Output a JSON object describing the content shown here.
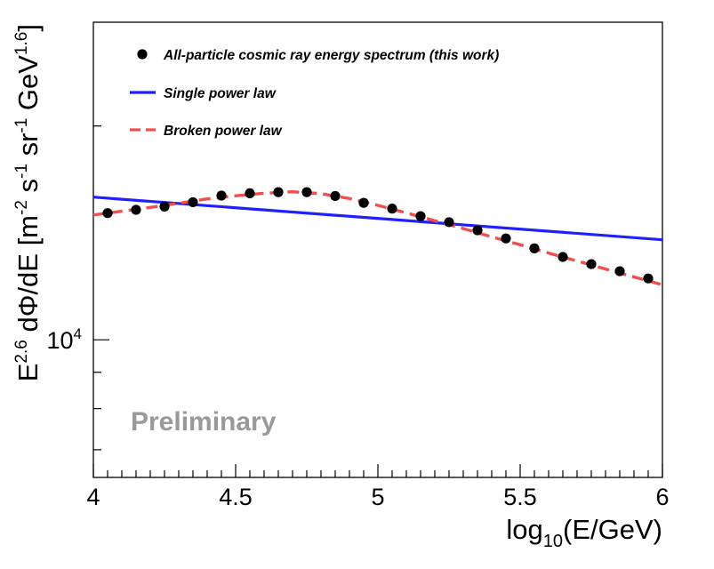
{
  "chart_data": {
    "type": "scatter",
    "title": "",
    "xlabel": {
      "base": "log",
      "sub": "10",
      "rest": "(E/GeV)"
    },
    "ylabel": {
      "parts": [
        {
          "t": "E",
          "s": "n"
        },
        {
          "t": "2.6",
          "s": "sup"
        },
        {
          "t": " dΦ/dE [m",
          "s": "n"
        },
        {
          "t": "-2",
          "s": "sup"
        },
        {
          "t": " s",
          "s": "n"
        },
        {
          "t": "-1",
          "s": "sup"
        },
        {
          "t": " sr",
          "s": "n"
        },
        {
          "t": "-1",
          "s": "sup"
        },
        {
          "t": " GeV",
          "s": "n"
        },
        {
          "t": "1.6",
          "s": "sup"
        },
        {
          "t": "]",
          "s": "n"
        }
      ]
    },
    "xlim": [
      4,
      6
    ],
    "ylim": [
      6400,
      28000
    ],
    "yscale": "log",
    "xticks": [
      "4",
      "4.5",
      "5",
      "5.5",
      "6"
    ],
    "yticks": [
      {
        "base": "10",
        "exp": "4",
        "value": 10000
      }
    ],
    "legend_position": "top-left",
    "annotation": "Preliminary",
    "series": [
      {
        "name": "All-particle cosmic ray energy spectrum (this work)",
        "kind": "points",
        "color": "#000000",
        "x": [
          4.05,
          4.15,
          4.25,
          4.35,
          4.45,
          4.55,
          4.65,
          4.75,
          4.85,
          4.95,
          5.05,
          5.15,
          5.25,
          5.35,
          5.45,
          5.55,
          5.65,
          5.75,
          5.85,
          5.95
        ],
        "y": [
          15080,
          15240,
          15400,
          15620,
          15960,
          16080,
          16140,
          16140,
          15940,
          15590,
          15300,
          14930,
          14640,
          14260,
          13890,
          13450,
          13080,
          12780,
          12490,
          12200
        ]
      },
      {
        "name": "Single power law",
        "kind": "line",
        "color": "#1f1fff",
        "x": [
          4.0,
          6.0
        ],
        "y": [
          15880,
          13830
        ]
      },
      {
        "name": "Broken power law",
        "kind": "dashed",
        "color": "#ef4f4f",
        "x": [
          4.0,
          4.1,
          4.2,
          4.3,
          4.4,
          4.5,
          4.6,
          4.7,
          4.8,
          4.9,
          5.0,
          5.1,
          5.2,
          5.3,
          5.4,
          5.5,
          5.6,
          5.7,
          5.8,
          5.9,
          6.0
        ],
        "y": [
          14990,
          15170,
          15360,
          15570,
          15790,
          15950,
          16080,
          16160,
          16060,
          15810,
          15460,
          15090,
          14710,
          14340,
          13960,
          13610,
          13250,
          12910,
          12580,
          12260,
          11950
        ]
      }
    ]
  }
}
